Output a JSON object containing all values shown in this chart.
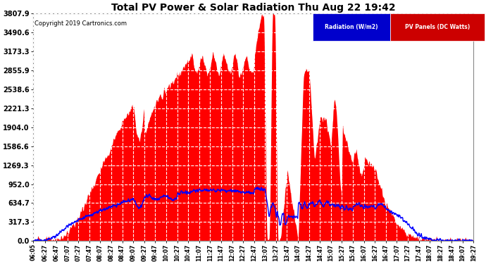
{
  "title": "Total PV Power & Solar Radiation Thu Aug 22 19:42",
  "copyright": "Copyright 2019 Cartronics.com",
  "background_color": "#ffffff",
  "plot_bg_color": "#ffffff",
  "grid_color": "#c8c8c8",
  "y_max": 3807.9,
  "y_ticks": [
    0.0,
    317.3,
    634.7,
    952.0,
    1269.3,
    1586.6,
    1904.0,
    2221.3,
    2538.6,
    2855.9,
    3173.3,
    3490.6,
    3807.9
  ],
  "x_tick_labels": [
    "06:05",
    "06:27",
    "06:47",
    "07:07",
    "07:27",
    "07:47",
    "08:07",
    "08:27",
    "08:47",
    "09:07",
    "09:27",
    "09:47",
    "10:07",
    "10:27",
    "10:47",
    "11:07",
    "11:27",
    "11:47",
    "12:07",
    "12:27",
    "12:47",
    "13:07",
    "13:27",
    "13:47",
    "14:07",
    "14:27",
    "14:47",
    "15:07",
    "15:27",
    "15:47",
    "16:07",
    "16:27",
    "16:47",
    "17:07",
    "17:27",
    "17:47",
    "18:07",
    "18:27",
    "18:47",
    "19:07",
    "19:27"
  ],
  "pv_color": "#ff0000",
  "radiation_color": "#0000ff",
  "legend_radiation_bg": "#0000cc",
  "legend_pv_bg": "#cc0000"
}
